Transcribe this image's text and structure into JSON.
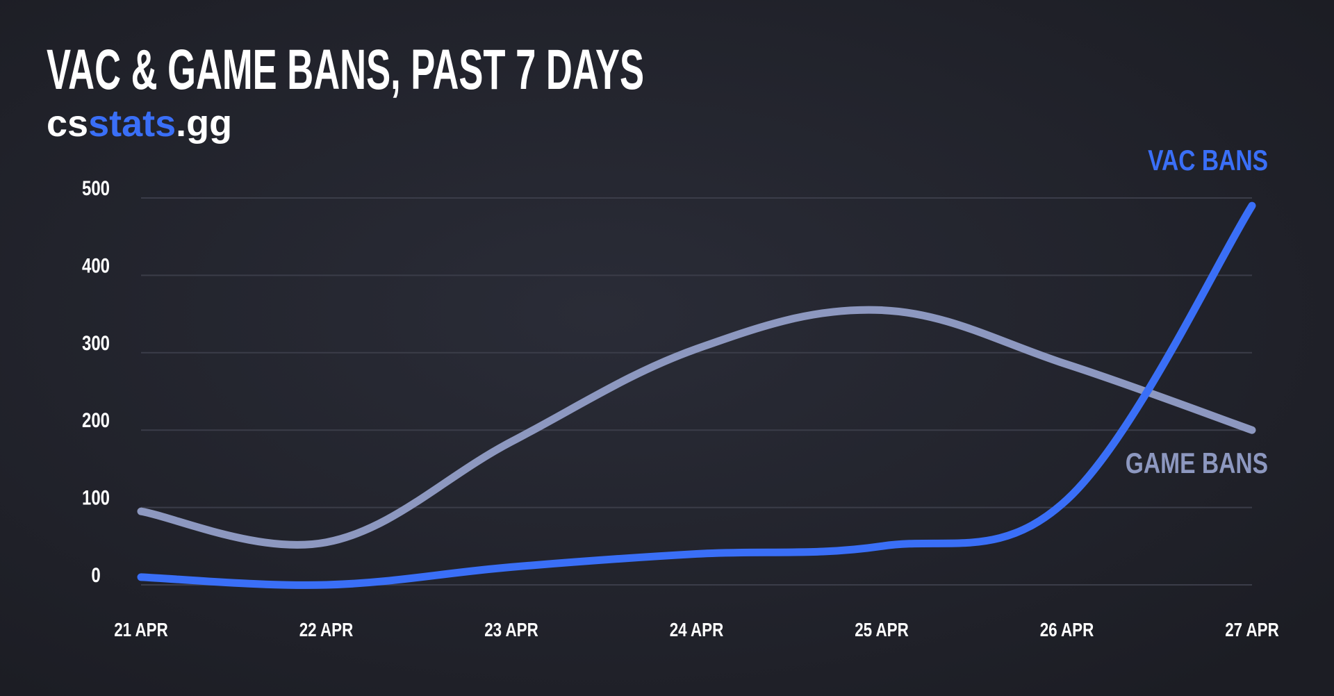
{
  "brand": {
    "parts": [
      "cs",
      "stats",
      ".gg"
    ]
  },
  "chart_data": {
    "type": "line",
    "title": "VAC & GAME BANS, PAST 7 DAYS",
    "categories": [
      "21 APR",
      "22 APR",
      "23 APR",
      "24 APR",
      "25 APR",
      "26 APR",
      "27 APR"
    ],
    "series": [
      {
        "name": "VAC BANS",
        "color": "#3a6ff7",
        "values": [
          10,
          0,
          23,
          40,
          50,
          110,
          490
        ]
      },
      {
        "name": "GAME BANS",
        "color": "#8d98c0",
        "values": [
          95,
          55,
          185,
          305,
          355,
          285,
          200
        ]
      }
    ],
    "ylim": [
      0,
      500
    ],
    "yticks": [
      0,
      100,
      200,
      300,
      400,
      500
    ],
    "grid": true
  }
}
